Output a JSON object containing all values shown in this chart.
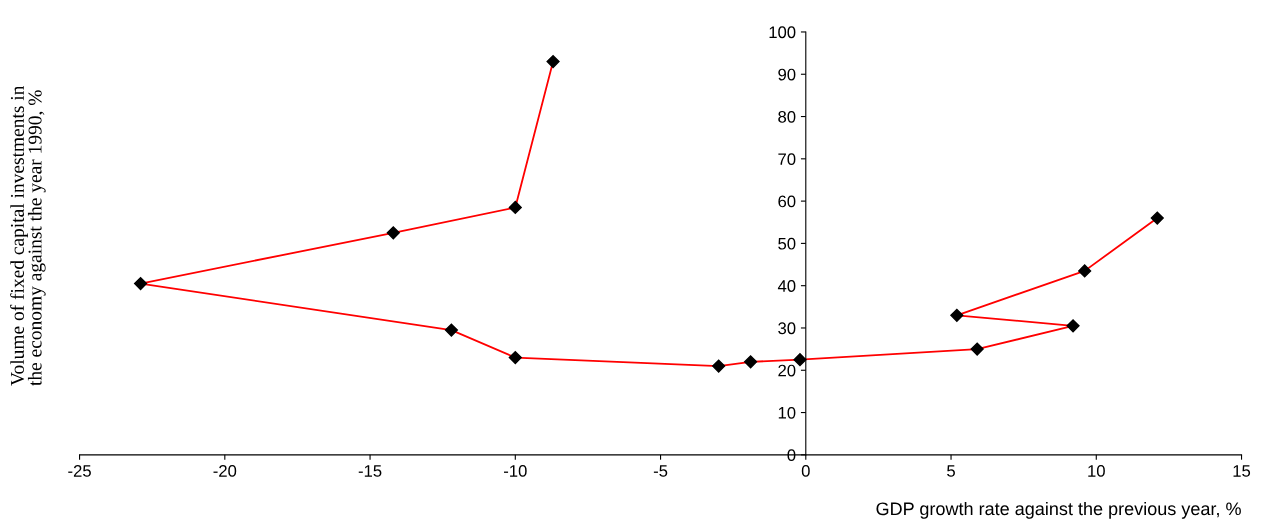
{
  "chart_data": {
    "type": "line",
    "xlabel": "GDP growth rate against the previous year, %",
    "ylabel": "Volume of fixed capital investments in the economy against the year 1990, %",
    "series": [
      {
        "color": "#ff0000",
        "marker": "diamond",
        "x": [
          -8.7,
          -10.0,
          -14.2,
          -22.9,
          -12.2,
          -10.0,
          -3.0,
          -1.9,
          -0.2,
          5.9,
          9.2,
          5.2,
          9.6,
          12.1
        ],
        "values": [
          93,
          58.5,
          52.5,
          40.5,
          29.5,
          23,
          21,
          22,
          22.5,
          25,
          30.5,
          33,
          43.5,
          56
        ]
      }
    ],
    "xlim": [
      -25,
      15
    ],
    "xticks": [
      -25,
      -20,
      -15,
      -10,
      -5,
      0,
      5,
      10,
      15
    ],
    "ylim": [
      0,
      100
    ],
    "yticks": [
      0,
      10,
      20,
      30,
      40,
      50,
      60,
      70,
      80,
      90,
      100
    ],
    "grid": false,
    "legend": false
  }
}
